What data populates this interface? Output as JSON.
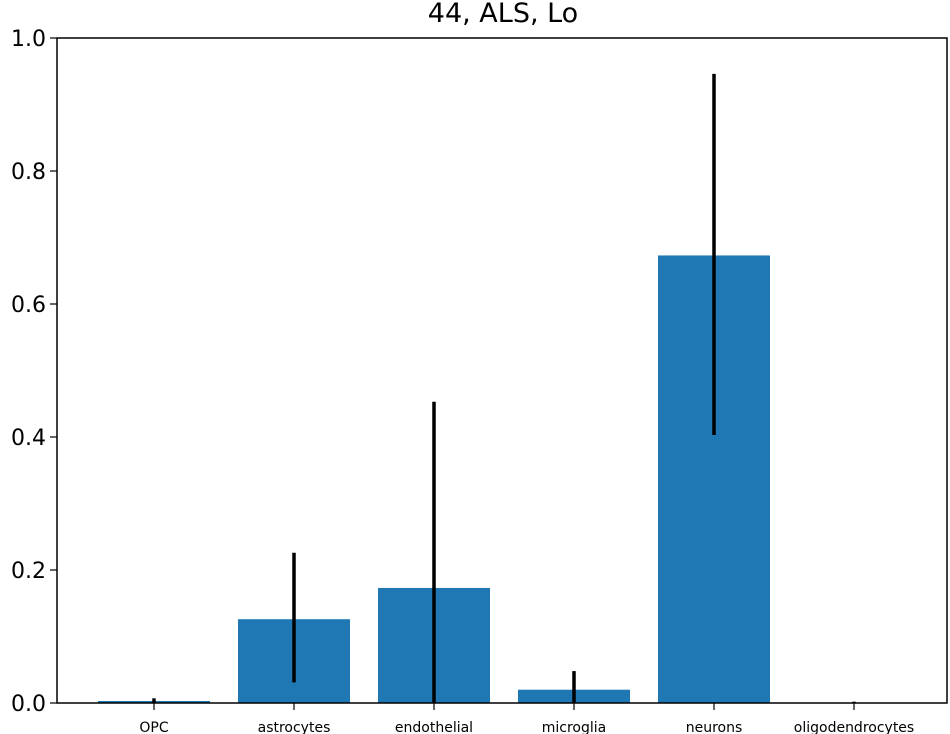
{
  "chart_data": {
    "type": "bar",
    "title": "44, ALS, Lo",
    "xlabel": "",
    "ylabel": "",
    "categories": [
      "OPC",
      "astrocytes",
      "endothelial",
      "microglia",
      "neurons",
      "oligodendrocytes"
    ],
    "values": [
      0.003,
      0.126,
      0.173,
      0.02,
      0.673,
      0.0
    ],
    "error_low": [
      0.0,
      0.031,
      0.0,
      0.0,
      0.403,
      0.0
    ],
    "error_high": [
      0.007,
      0.226,
      0.453,
      0.048,
      0.946,
      0.002
    ],
    "ylim": [
      0,
      1.0
    ],
    "yticks": [
      "0.0",
      "0.2",
      "0.4",
      "0.6",
      "0.8",
      "1.0"
    ],
    "ytick_values": [
      0,
      0.2,
      0.4,
      0.6,
      0.8,
      1.0
    ],
    "bar_color": "#1f77b4",
    "error_color": "#000000",
    "grid": false,
    "legend": "none"
  }
}
